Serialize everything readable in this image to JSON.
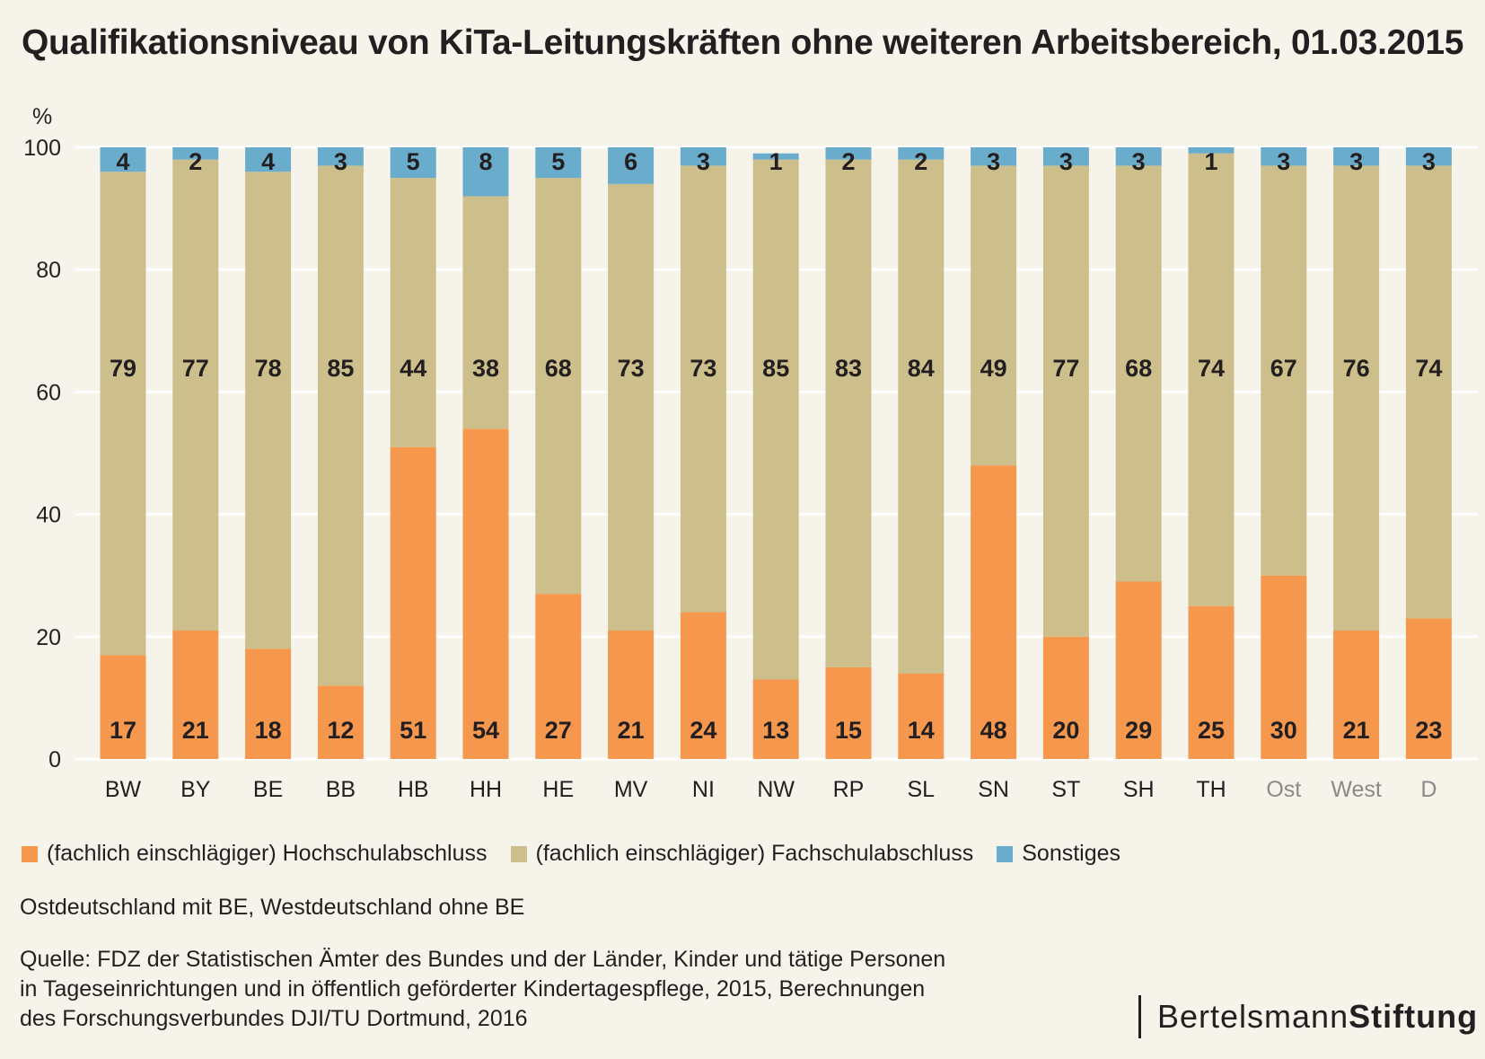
{
  "title": "Qualifikationsniveau von KiTa-Leitungskräften ohne weiteren Arbeitsbereich, 01.03.2015",
  "colors": {
    "hochschule": "#f5984d",
    "fachschule": "#cdbf8b",
    "sonstiges": "#6aaccb",
    "grid": "#ffffff",
    "aggregate_label": "#8a8a8a"
  },
  "chart_data": {
    "type": "bar",
    "stacked": true,
    "ylabel": "%",
    "ylim": [
      0,
      100
    ],
    "yticks": [
      "0",
      "20",
      "40",
      "60",
      "80",
      "100"
    ],
    "grid": true,
    "categories": [
      "BW",
      "BY",
      "BE",
      "BB",
      "HB",
      "HH",
      "HE",
      "MV",
      "NI",
      "NW",
      "RP",
      "SL",
      "SN",
      "ST",
      "SH",
      "TH",
      "Ost",
      "West",
      "D"
    ],
    "aggregate_categories": [
      "Ost",
      "West",
      "D"
    ],
    "series": [
      {
        "name": "(fachlich einschlägiger) Hochschulabschluss",
        "values": [
          17,
          21,
          18,
          12,
          51,
          54,
          27,
          21,
          24,
          13,
          15,
          14,
          48,
          20,
          29,
          25,
          30,
          21,
          23
        ]
      },
      {
        "name": "(fachlich einschlägiger) Fachschulabschluss",
        "values": [
          79,
          77,
          78,
          85,
          44,
          38,
          68,
          73,
          73,
          85,
          83,
          84,
          49,
          77,
          68,
          74,
          67,
          76,
          74
        ]
      },
      {
        "name": "Sonstiges",
        "values": [
          4,
          2,
          4,
          3,
          5,
          8,
          5,
          6,
          3,
          1,
          2,
          2,
          3,
          3,
          3,
          1,
          3,
          3,
          3
        ]
      }
    ]
  },
  "legend": {
    "hochschule": "(fachlich einschlägiger) Hochschulabschluss",
    "fachschule": "(fachlich einschlägiger) Fachschulabschluss",
    "sonstiges": "Sonstiges"
  },
  "note": "Ostdeutschland mit BE, Westdeutschland ohne BE",
  "source": [
    "Quelle: FDZ der Statistischen Ämter des Bundes und der Länder, Kinder und tätige Personen",
    "in Tageseinrichtungen und in öffentlich geförderter Kindertagespflege, 2015, Berechnungen",
    "des Forschungsverbundes DJI/TU Dortmund, 2016"
  ],
  "logo": {
    "part1": "Bertelsmann",
    "part2": "Stiftung"
  }
}
